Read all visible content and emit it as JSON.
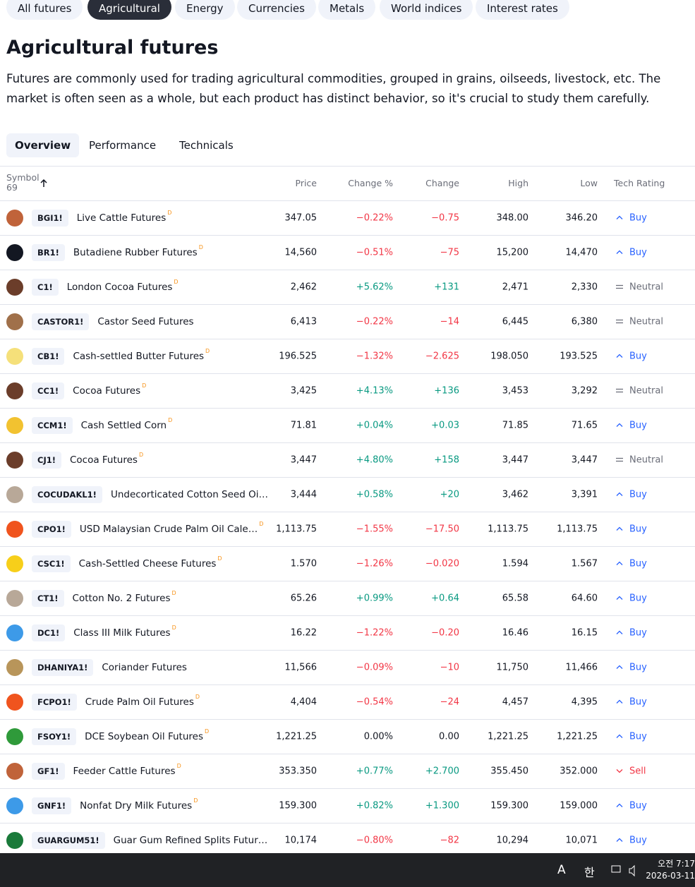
{
  "top_tabs": {
    "items": [
      "All futures",
      "Agricultural",
      "Energy",
      "Currencies",
      "Metals",
      "World indices",
      "Interest rates"
    ],
    "active": 1
  },
  "header": {
    "title": "Agricultural futures",
    "description": "Futures are commonly used for trading agricultural commodities, grouped in grains, oilseeds, livestock, etc. The market is often seen as a whole, but each product has distinct behavior, so it's crucial to study them carefully."
  },
  "sub_tabs": {
    "items": [
      "Overview",
      "Performance",
      "Technicals"
    ],
    "active": 0
  },
  "table": {
    "symbol_label": "Symbol",
    "count": "69",
    "columns": [
      "Price",
      "Change %",
      "Change",
      "High",
      "Low",
      "Tech Rating"
    ],
    "delay_mark": "D",
    "rows": [
      {
        "symbol": "BGI1!",
        "name": "Live Cattle Futures",
        "delayed": true,
        "icon": "#c0633a",
        "cells": [
          "347.05",
          "−0.22%",
          "−0.75",
          "348.00",
          "346.20",
          "Buy"
        ]
      },
      {
        "symbol": "BR1!",
        "name": "Butadiene Rubber Futures",
        "delayed": true,
        "icon": "#131722",
        "cells": [
          "14,560",
          "−0.51%",
          "−75",
          "15,200",
          "14,470",
          "Buy"
        ]
      },
      {
        "symbol": "C1!",
        "name": "London Cocoa Futures",
        "delayed": true,
        "icon": "#6b3d2a",
        "cells": [
          "2,462",
          "+5.62%",
          "+131",
          "2,471",
          "2,330",
          "Neutral"
        ]
      },
      {
        "symbol": "CASTOR1!",
        "name": "Castor Seed Futures",
        "delayed": false,
        "icon": "#a0704a",
        "cells": [
          "6,413",
          "−0.22%",
          "−14",
          "6,445",
          "6,380",
          "Neutral"
        ]
      },
      {
        "symbol": "CB1!",
        "name": "Cash-settled Butter Futures",
        "delayed": true,
        "icon": "#f5e07a",
        "cells": [
          "196.525",
          "−1.32%",
          "−2.625",
          "198.050",
          "193.525",
          "Buy"
        ]
      },
      {
        "symbol": "CC1!",
        "name": "Cocoa Futures",
        "delayed": true,
        "icon": "#6b3d2a",
        "cells": [
          "3,425",
          "+4.13%",
          "+136",
          "3,453",
          "3,292",
          "Neutral"
        ]
      },
      {
        "symbol": "CCM1!",
        "name": "Cash Settled Corn",
        "delayed": true,
        "icon": "#f2c230",
        "cells": [
          "71.81",
          "+0.04%",
          "+0.03",
          "71.85",
          "71.65",
          "Buy"
        ]
      },
      {
        "symbol": "CJ1!",
        "name": "Cocoa Futures",
        "delayed": true,
        "icon": "#6b3d2a",
        "cells": [
          "3,447",
          "+4.80%",
          "+158",
          "3,447",
          "3,447",
          "Neutral"
        ]
      },
      {
        "symbol": "COCUDAKL1!",
        "name": "Undecorticated Cotton Seed Oi…",
        "delayed": false,
        "icon": "#b8a898",
        "cells": [
          "3,444",
          "+0.58%",
          "+20",
          "3,462",
          "3,391",
          "Buy"
        ]
      },
      {
        "symbol": "CPO1!",
        "name": "USD Malaysian Crude Palm Oil Cale…",
        "delayed": true,
        "icon": "#f0541e",
        "cells": [
          "1,113.75",
          "−1.55%",
          "−17.50",
          "1,113.75",
          "1,113.75",
          "Buy"
        ]
      },
      {
        "symbol": "CSC1!",
        "name": "Cash-Settled Cheese Futures",
        "delayed": true,
        "icon": "#f7cf1a",
        "cells": [
          "1.570",
          "−1.26%",
          "−0.020",
          "1.594",
          "1.567",
          "Buy"
        ]
      },
      {
        "symbol": "CT1!",
        "name": "Cotton No. 2 Futures",
        "delayed": true,
        "icon": "#b8a898",
        "cells": [
          "65.26",
          "+0.99%",
          "+0.64",
          "65.58",
          "64.60",
          "Buy"
        ]
      },
      {
        "symbol": "DC1!",
        "name": "Class III Milk Futures",
        "delayed": true,
        "icon": "#3d9ae8",
        "cells": [
          "16.22",
          "−1.22%",
          "−0.20",
          "16.46",
          "16.15",
          "Buy"
        ]
      },
      {
        "symbol": "DHANIYA1!",
        "name": "Coriander Futures",
        "delayed": false,
        "icon": "#b8955a",
        "cells": [
          "11,566",
          "−0.09%",
          "−10",
          "11,750",
          "11,466",
          "Buy"
        ]
      },
      {
        "symbol": "FCPO1!",
        "name": "Crude Palm Oil Futures",
        "delayed": true,
        "icon": "#f0541e",
        "cells": [
          "4,404",
          "−0.54%",
          "−24",
          "4,457",
          "4,395",
          "Buy"
        ]
      },
      {
        "symbol": "FSOY1!",
        "name": "DCE Soybean Oil Futures",
        "delayed": true,
        "icon": "#2f9a3a",
        "cells": [
          "1,221.25",
          "0.00%",
          "0.00",
          "1,221.25",
          "1,221.25",
          "Buy"
        ]
      },
      {
        "symbol": "GF1!",
        "name": "Feeder Cattle Futures",
        "delayed": true,
        "icon": "#c0633a",
        "cells": [
          "353.350",
          "+0.77%",
          "+2.700",
          "355.450",
          "352.000",
          "Sell"
        ]
      },
      {
        "symbol": "GNF1!",
        "name": "Nonfat Dry Milk Futures",
        "delayed": true,
        "icon": "#3d9ae8",
        "cells": [
          "159.300",
          "+0.82%",
          "+1.300",
          "159.300",
          "159.000",
          "Buy"
        ]
      },
      {
        "symbol": "GUARGUM51!",
        "name": "Guar Gum Refined Splits Futur…",
        "delayed": false,
        "icon": "#1a7a3a",
        "cells": [
          "10,174",
          "−0.80%",
          "−82",
          "10,294",
          "10,071",
          "Buy"
        ]
      }
    ]
  },
  "taskbar": {
    "ime": [
      "A",
      "한"
    ],
    "time": "오전 7:17",
    "date": "2026-03-11"
  }
}
